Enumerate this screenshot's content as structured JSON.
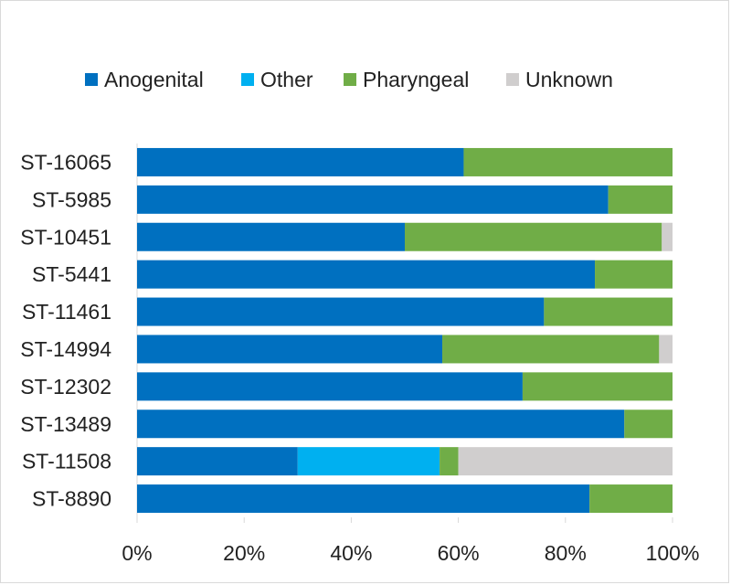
{
  "chart_data": {
    "type": "bar",
    "orientation": "horizontal",
    "stacked": "percent",
    "categories": [
      "ST-16065",
      "ST-5985",
      "ST-10451",
      "ST-5441",
      "ST-11461",
      "ST-14994",
      "ST-12302",
      "ST-13489",
      "ST-11508",
      "ST-8890"
    ],
    "series": [
      {
        "name": "Anogenital",
        "color": "#0070C0",
        "values": [
          61,
          88,
          50,
          85.5,
          76,
          57,
          72,
          91,
          30,
          84.5
        ]
      },
      {
        "name": "Other",
        "color": "#00B0F0",
        "values": [
          0,
          0,
          0,
          0,
          0,
          0,
          0,
          0,
          26.5,
          0
        ]
      },
      {
        "name": "Pharyngeal",
        "color": "#70AD47",
        "values": [
          39,
          12,
          48,
          14.5,
          24,
          40.5,
          28,
          9,
          3.5,
          15.5
        ]
      },
      {
        "name": "Unknown",
        "color": "#D0CECE",
        "values": [
          0,
          0,
          2,
          0,
          0,
          2.5,
          0,
          0,
          40,
          0
        ]
      }
    ],
    "xlim": [
      0,
      100
    ],
    "xticks": [
      "0%",
      "20%",
      "40%",
      "60%",
      "80%",
      "100%"
    ],
    "title": "",
    "xlabel": "",
    "ylabel": "",
    "legend_position": "top",
    "grid": false
  }
}
